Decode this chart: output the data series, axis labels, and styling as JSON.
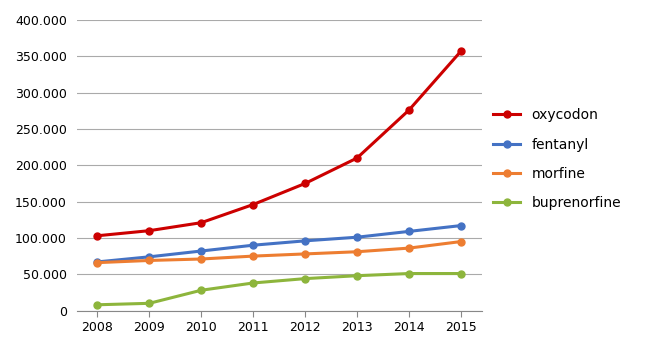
{
  "years": [
    2008,
    2009,
    2010,
    2011,
    2012,
    2013,
    2014,
    2015
  ],
  "oxycodon": [
    103000,
    110000,
    121000,
    146000,
    175000,
    210000,
    276000,
    357000
  ],
  "fentanyl": [
    67000,
    74000,
    82000,
    90000,
    96000,
    101000,
    109000,
    117000
  ],
  "morfine": [
    66000,
    69000,
    71000,
    75000,
    78000,
    81000,
    86000,
    95000
  ],
  "buprenorfine": [
    8000,
    10000,
    28000,
    38000,
    44000,
    48000,
    51000,
    51000
  ],
  "colors": {
    "oxycodon": "#cc0000",
    "fentanyl": "#4472c4",
    "morfine": "#ed7d31",
    "buprenorfine": "#8db53c"
  },
  "ylim": [
    0,
    400000
  ],
  "yticks": [
    0,
    50000,
    100000,
    150000,
    200000,
    250000,
    300000,
    350000,
    400000
  ],
  "ytick_labels": [
    "0",
    "50.000",
    "100.000",
    "150.000",
    "200.000",
    "250.000",
    "300.000",
    "350.000",
    "400.000"
  ],
  "legend_labels": [
    "oxycodon",
    "fentanyl",
    "morfine",
    "buprenorfine"
  ],
  "background_color": "#ffffff",
  "grid_color": "#aaaaaa",
  "linewidth": 2.2,
  "marker": "o",
  "markersize": 5
}
